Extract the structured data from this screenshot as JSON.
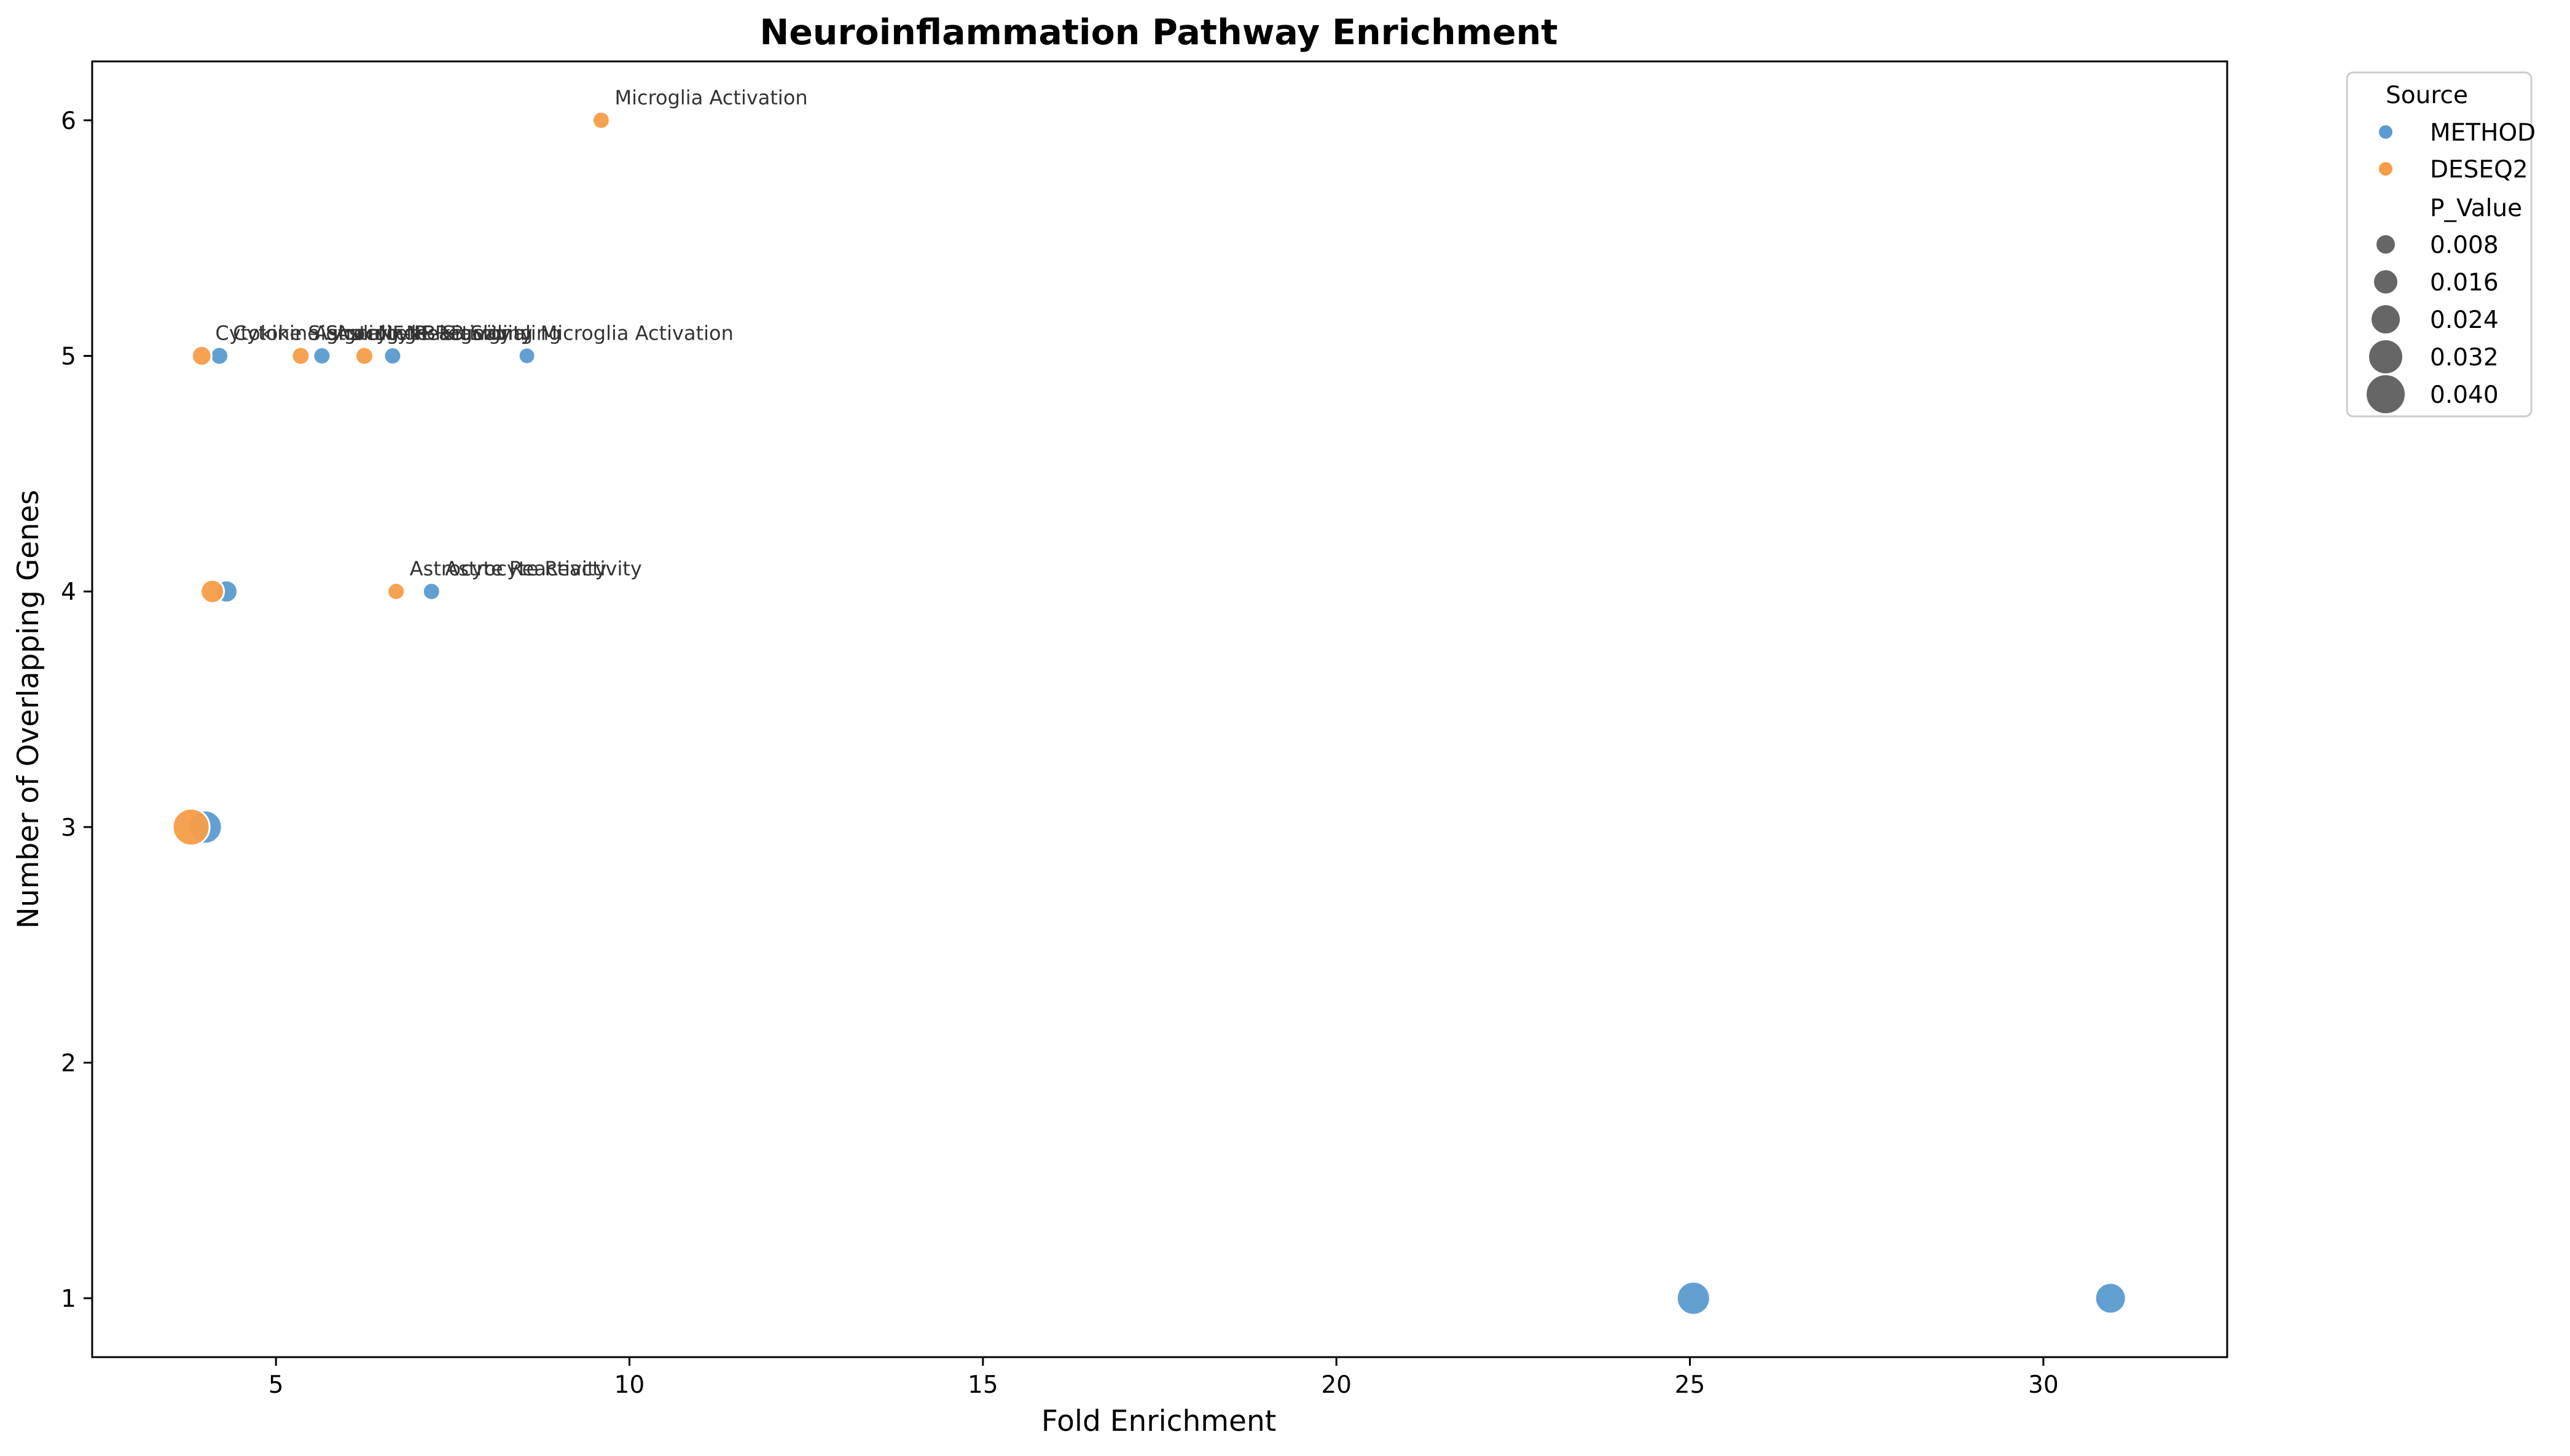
{
  "chart_data": {
    "type": "scatter",
    "title": "Neuroinflammation Pathway Enrichment",
    "xlabel": "Fold Enrichment",
    "ylabel": "Number of Overlapping Genes",
    "xlim": [
      2.4,
      32.6
    ],
    "ylim": [
      0.75,
      6.25
    ],
    "xticks": [
      5,
      10,
      15,
      20,
      25,
      30
    ],
    "yticks": [
      1,
      2,
      3,
      4,
      5,
      6
    ],
    "grid": false,
    "legend_position": "outside-right",
    "hue_legend_title": "Source",
    "size_legend_title": "P_Value",
    "size_legend": [
      {
        "label": "0.008",
        "value": 0.008
      },
      {
        "label": "0.016",
        "value": 0.016
      },
      {
        "label": "0.024",
        "value": 0.024
      },
      {
        "label": "0.032",
        "value": 0.032
      },
      {
        "label": "0.040",
        "value": 0.04
      }
    ],
    "series": [
      {
        "name": "METHOD",
        "color": "#5b9bd0",
        "points": [
          {
            "x": 4.2,
            "y": 5,
            "p_value": 0.005,
            "label": "Cytokine Signaling"
          },
          {
            "x": 5.65,
            "y": 5,
            "p_value": 0.004,
            "label": "Astrocyte Reactivity"
          },
          {
            "x": 6.65,
            "y": 5,
            "p_value": 0.004,
            "label": "NF-kB Signaling"
          },
          {
            "x": 8.55,
            "y": 5,
            "p_value": 0.003,
            "label": "Microglia Activation"
          },
          {
            "x": 4.3,
            "y": 4,
            "p_value": 0.012,
            "label": ""
          },
          {
            "x": 7.2,
            "y": 4,
            "p_value": 0.004,
            "label": "Astrocyte Reactivity"
          },
          {
            "x": 4.0,
            "y": 3,
            "p_value": 0.03,
            "label": ""
          },
          {
            "x": 25.05,
            "y": 1,
            "p_value": 0.03,
            "label": ""
          },
          {
            "x": 30.95,
            "y": 1,
            "p_value": 0.026,
            "label": ""
          }
        ]
      },
      {
        "name": "DESEQ2",
        "color": "#f79d47",
        "points": [
          {
            "x": 9.6,
            "y": 6,
            "p_value": 0.004,
            "label": "Microglia Activation"
          },
          {
            "x": 3.95,
            "y": 5,
            "p_value": 0.008,
            "label": "Cytokine Signaling"
          },
          {
            "x": 5.35,
            "y": 5,
            "p_value": 0.005,
            "label": "Astrocyte Reactivity"
          },
          {
            "x": 6.25,
            "y": 5,
            "p_value": 0.005,
            "label": "NF-kB Signaling"
          },
          {
            "x": 4.1,
            "y": 4,
            "p_value": 0.014,
            "label": ""
          },
          {
            "x": 6.7,
            "y": 4,
            "p_value": 0.004,
            "label": "Astrocyte Reactivity"
          },
          {
            "x": 3.8,
            "y": 3,
            "p_value": 0.036,
            "label": ""
          }
        ]
      }
    ]
  }
}
